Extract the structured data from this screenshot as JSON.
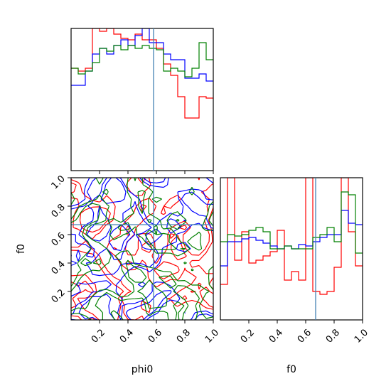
{
  "chart_data": {
    "type": "corner",
    "parameters": [
      "phi0",
      "f0"
    ],
    "truths": {
      "phi0": 0.58,
      "f0": 0.67
    },
    "colors": {
      "red": "#ff0000",
      "blue": "#0000ff",
      "green": "#008000",
      "truth": "#4682b4"
    },
    "bin_edges": [
      0,
      0.05,
      0.1,
      0.15,
      0.2,
      0.25,
      0.3,
      0.35,
      0.4,
      0.45,
      0.5,
      0.55,
      0.6,
      0.65,
      0.7,
      0.75,
      0.8,
      0.85,
      0.9,
      0.95,
      1.0
    ],
    "panels": [
      {
        "id": "hist-phi0",
        "kind": "histogram",
        "xlim": [
          0,
          1
        ],
        "ylim": [
          0,
          1.0
        ],
        "series": [
          {
            "color": "red",
            "values": [
              0.72,
              0.7,
              0.72,
              1.0,
              0.98,
              1.0,
              0.96,
              0.93,
              0.92,
              0.96,
              0.92,
              0.92,
              0.86,
              0.75,
              0.67,
              0.52,
              0.37,
              0.37,
              0.52,
              0.51
            ]
          },
          {
            "color": "blue",
            "values": [
              0.6,
              0.6,
              0.7,
              0.82,
              0.86,
              0.82,
              0.88,
              0.92,
              0.88,
              0.95,
              1.0,
              0.9,
              0.9,
              0.82,
              0.78,
              0.78,
              0.65,
              0.65,
              0.68,
              0.63
            ]
          },
          {
            "color": "green",
            "values": [
              0.72,
              0.68,
              0.7,
              0.76,
              0.86,
              0.84,
              0.88,
              0.85,
              0.88,
              0.86,
              0.88,
              0.86,
              0.85,
              0.7,
              0.72,
              0.7,
              0.66,
              0.72,
              0.9,
              0.78
            ]
          }
        ]
      },
      {
        "id": "contour-phi0-f0",
        "kind": "2d-contour",
        "xlim": [
          0,
          1
        ],
        "ylim": [
          0,
          1
        ],
        "series_colors": [
          "red",
          "blue",
          "green"
        ],
        "note": "noisy contour levels overlapping across the full domain"
      },
      {
        "id": "hist-f0",
        "kind": "histogram",
        "xlim": [
          0,
          1
        ],
        "ylim": [
          0,
          1.0
        ],
        "series": [
          {
            "color": "red",
            "values": [
              0.25,
              1.0,
              0.42,
              0.62,
              0.4,
              0.42,
              0.45,
              0.48,
              0.63,
              0.28,
              0.34,
              0.28,
              1.0,
              0.2,
              0.18,
              0.2,
              0.37,
              1.0,
              0.62,
              0.38
            ]
          },
          {
            "color": "blue",
            "values": [
              0.38,
              0.55,
              0.55,
              0.57,
              0.58,
              0.56,
              0.54,
              0.52,
              0.5,
              0.52,
              0.5,
              0.53,
              0.52,
              0.55,
              0.58,
              0.6,
              0.6,
              0.77,
              0.68,
              0.67
            ]
          },
          {
            "color": "green",
            "values": [
              0.55,
              0.6,
              0.59,
              0.6,
              0.63,
              0.65,
              0.62,
              0.5,
              0.5,
              0.52,
              0.5,
              0.5,
              0.5,
              0.58,
              0.6,
              0.65,
              0.55,
              0.9,
              0.88,
              0.47
            ]
          }
        ]
      }
    ],
    "tick_values": [
      0.2,
      0.4,
      0.6,
      0.8,
      1.0
    ],
    "tick_labels": [
      "0.2",
      "0.4",
      "0.6",
      "0.8",
      "1.0"
    ],
    "xlabels": [
      "phi0",
      "f0"
    ],
    "ylabels": [
      "f0"
    ]
  }
}
